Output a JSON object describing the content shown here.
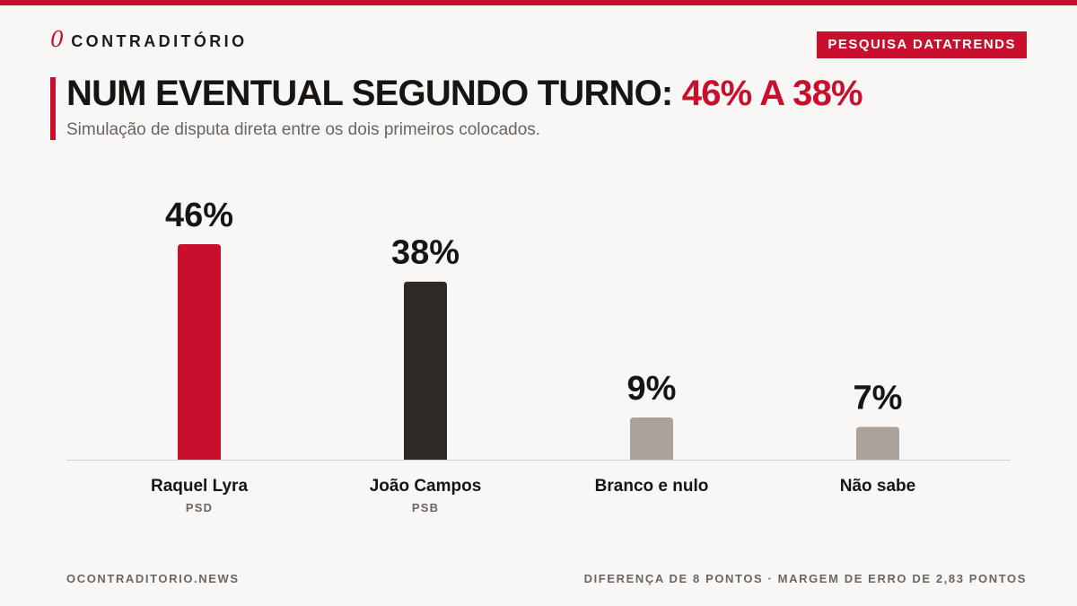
{
  "brand": {
    "mark": "0",
    "name": "CONTRADITÓRIO"
  },
  "badge": "PESQUISA DATATRENDS",
  "header": {
    "title_main": "NUM EVENTUAL SEGUNDO TURNO: ",
    "title_accent": "46% A 38%",
    "subtitle": "Simulação de disputa direta entre os dois primeiros colocados."
  },
  "colors": {
    "accent": "#c8102e",
    "dark": "#2e2926",
    "neutral": "#aba39b",
    "text": "#171412",
    "muted": "#6b6561",
    "background": "#f8f7f5"
  },
  "chart_data": {
    "type": "bar",
    "title": "NUM EVENTUAL SEGUNDO TURNO: 46% A 38%",
    "subtitle": "Simulação de disputa direta entre os dois primeiros colocados.",
    "categories": [
      "Raquel Lyra",
      "João Campos",
      "Branco e nulo",
      "Não sabe"
    ],
    "sublabels": [
      "PSD",
      "PSB",
      "",
      ""
    ],
    "values": [
      46,
      38,
      9,
      7
    ],
    "value_labels": [
      "46%",
      "38%",
      "9%",
      "7%"
    ],
    "bar_colors": [
      "#c8102e",
      "#2e2926",
      "#aba39b",
      "#aba39b"
    ],
    "unit": "%",
    "ylim": [
      0,
      50
    ],
    "grid": false,
    "legend": "none"
  },
  "footer": {
    "left": "OCONTRADITORIO.NEWS",
    "right": "DIFERENÇA DE 8 PONTOS · MARGEM DE ERRO DE 2,83 PONTOS"
  }
}
